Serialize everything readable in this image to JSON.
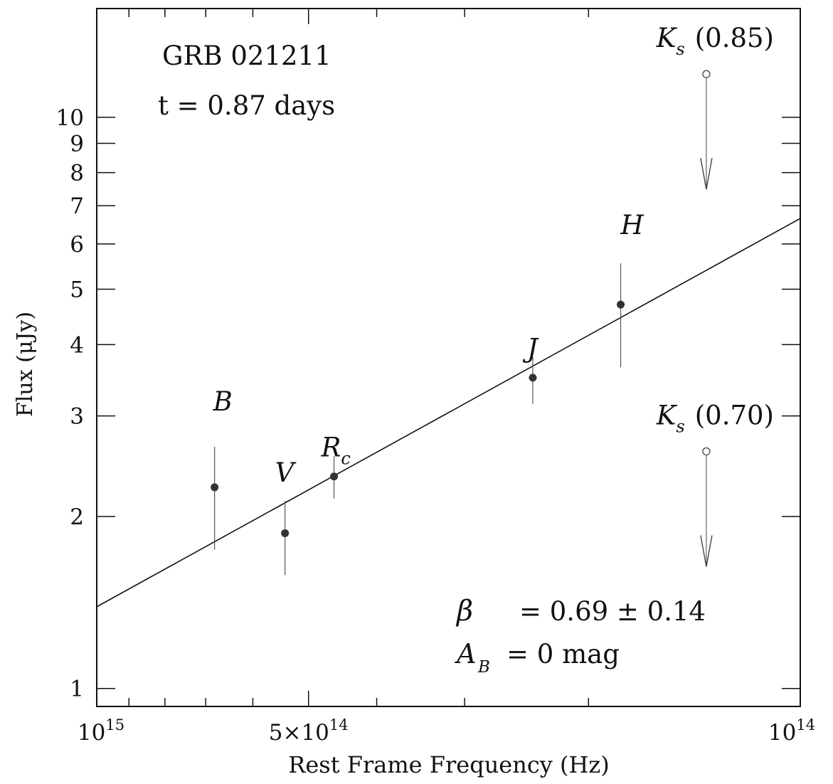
{
  "chart_data": {
    "type": "scatter",
    "title": "GRB 021211",
    "subtitle": "t = 0.87 days",
    "xlabel": "Rest Frame Frequency (Hz)",
    "ylabel": "Flux (μJy)",
    "x_scale": "log",
    "x_reversed": true,
    "y_scale": "log",
    "xlim": [
      1000000000000000.0,
      100000000000000.0
    ],
    "ylim": [
      0.93,
      15.5
    ],
    "x_ticklabels": [
      {
        "value": 1000000000000000.0,
        "base": "10",
        "exp": "15"
      },
      {
        "value": 500000000000000.0,
        "base": "5×10",
        "exp": "14"
      },
      {
        "value": 100000000000000.0,
        "base": "10",
        "exp": "14"
      }
    ],
    "y_ticklabels": [
      {
        "value": 1,
        "label": "1"
      },
      {
        "value": 2,
        "label": "2"
      },
      {
        "value": 3,
        "label": "3"
      },
      {
        "value": 4,
        "label": "4"
      },
      {
        "value": 5,
        "label": "5"
      },
      {
        "value": 6,
        "label": "6"
      },
      {
        "value": 7,
        "label": "7"
      },
      {
        "value": 8,
        "label": "8"
      },
      {
        "value": 9,
        "label": "9"
      },
      {
        "value": 10,
        "label": "10"
      }
    ],
    "points": [
      {
        "band": "B",
        "sub": "",
        "x": 680000000000000.0,
        "y": 2.25,
        "ylo": 1.75,
        "yhi": 2.65
      },
      {
        "band": "V",
        "sub": "",
        "x": 540000000000000.0,
        "y": 1.87,
        "ylo": 1.58,
        "yhi": 2.13
      },
      {
        "band": "R",
        "sub": "c",
        "x": 460000000000000.0,
        "y": 2.35,
        "ylo": 2.15,
        "yhi": 2.55
      },
      {
        "band": "J",
        "sub": "",
        "x": 240000000000000.0,
        "y": 3.5,
        "ylo": 3.15,
        "yhi": 3.8
      },
      {
        "band": "H",
        "sub": "",
        "x": 180000000000000.0,
        "y": 4.7,
        "ylo": 3.65,
        "yhi": 5.55
      }
    ],
    "upper_limits": [
      {
        "band": "K",
        "sub": "s",
        "note": "(0.85)",
        "x": 136000000000000.0,
        "y": 11.9
      },
      {
        "band": "K",
        "sub": "s",
        "note": "(0.70)",
        "x": 136000000000000.0,
        "y": 2.6
      }
    ],
    "fit_line": {
      "x": [
        1000000000000000.0,
        100000000000000.0
      ],
      "y": [
        1.39,
        6.65
      ]
    },
    "annotations": {
      "beta_symbol": "β",
      "beta_text": "=  0.69 ± 0.14",
      "ab_symbol": "A",
      "ab_sub": "B",
      "ab_text": "=  0 mag"
    },
    "grid": false,
    "legend": "none"
  }
}
